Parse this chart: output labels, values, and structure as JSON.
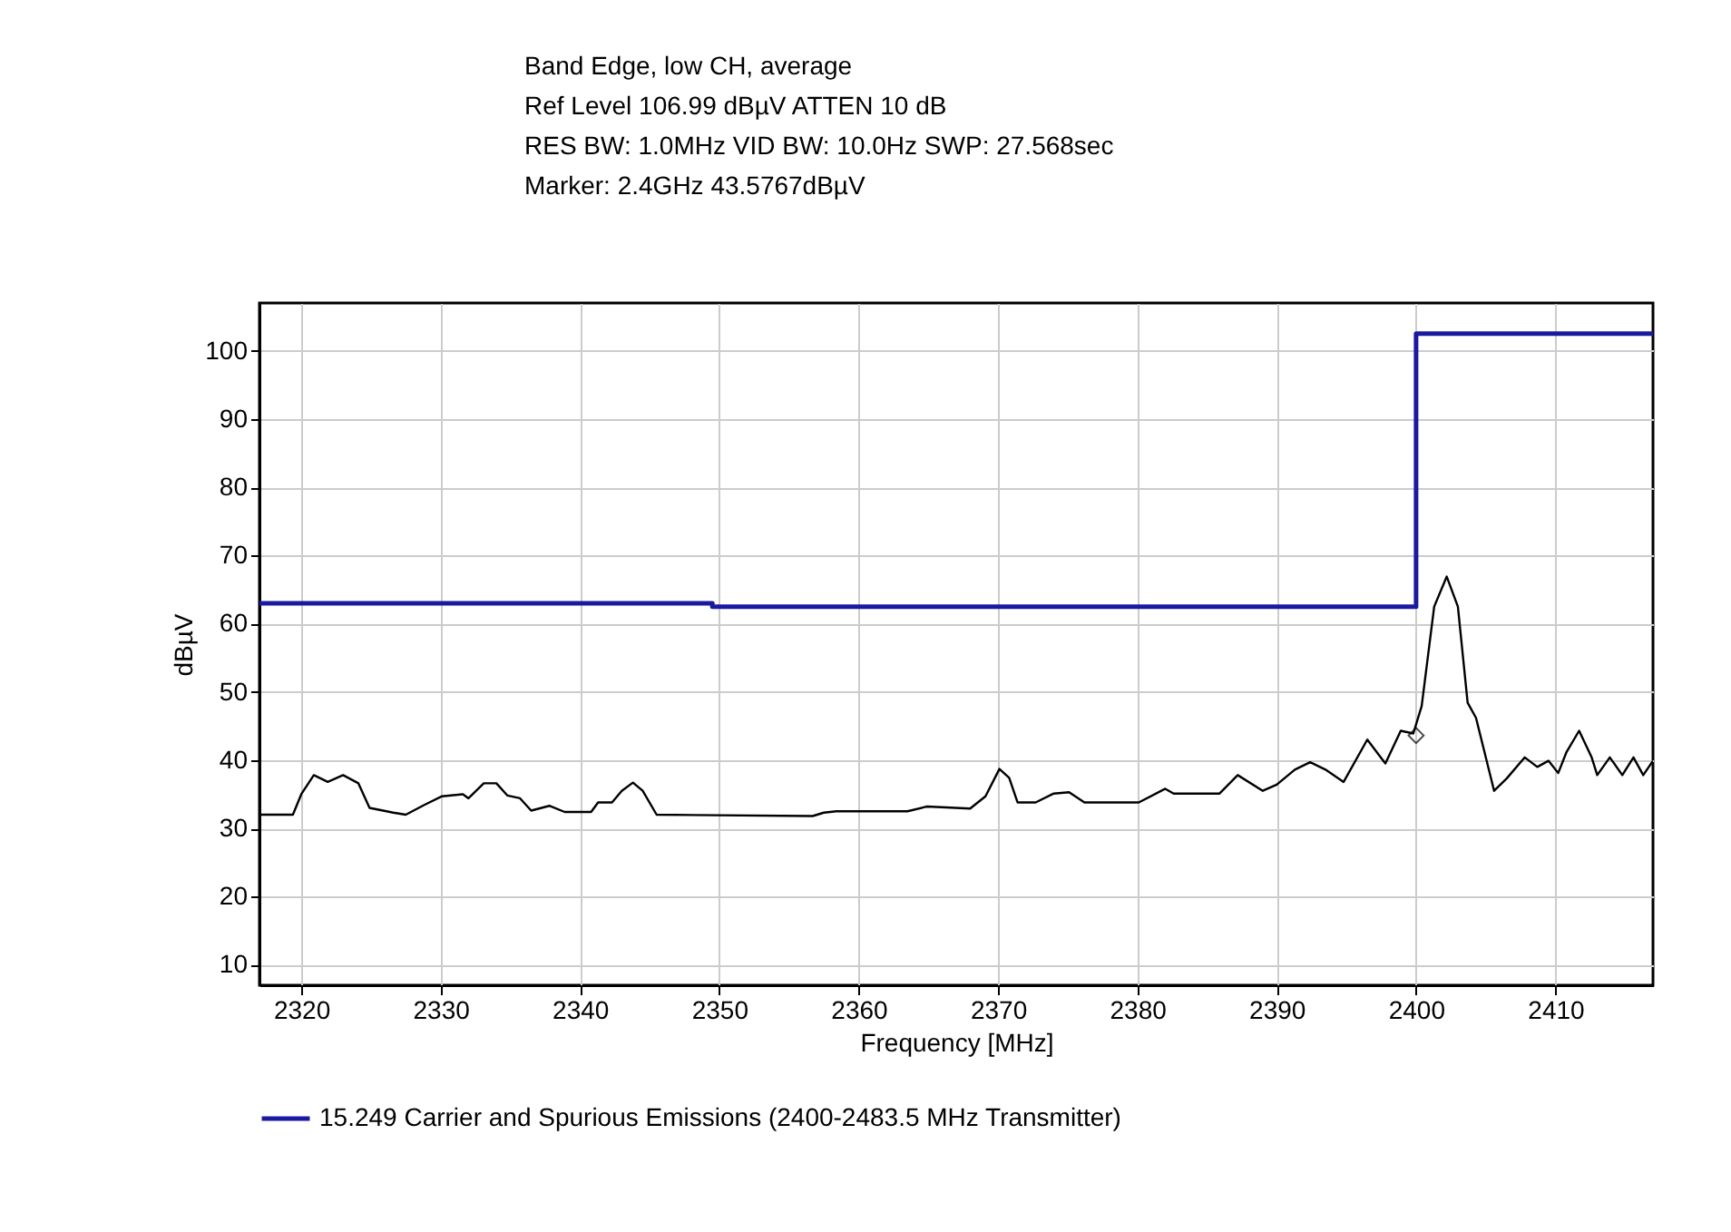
{
  "chart_data": {
    "type": "line",
    "xlabel": "Frequency [MHz]",
    "ylabel": "dBµV",
    "annotations": [
      "Band Edge, low CH, average",
      "Ref Level 106.99 dBµV    ATTEN 10 dB",
      "RES BW: 1.0MHz  VID BW: 10.0Hz  SWP: 27.568sec",
      "Marker: 2.4GHz  43.5767dBµV"
    ],
    "xlim": [
      2317,
      2417
    ],
    "xticks": [
      2320,
      2330,
      2340,
      2350,
      2360,
      2370,
      2380,
      2390,
      2400,
      2410
    ],
    "ylim": [
      7,
      107
    ],
    "yticks": [
      10,
      20,
      30,
      40,
      50,
      60,
      70,
      80,
      90,
      100
    ],
    "grid": true,
    "legend": "bottom",
    "series": [
      {
        "name": "15.249 Carrier and Spurious Emissions (2400-2483.5 MHz Transmitter)",
        "type": "step",
        "color": "#1a1aa0",
        "x": [
          2317,
          2349.5,
          2400,
          2417
        ],
        "values": [
          63,
          62.5,
          102.5,
          102.5
        ]
      },
      {
        "color": "#000000",
        "x": [
          2317.1,
          2319.4,
          2320,
          2320.9,
          2321.9,
          2323,
          2324.1,
          2324.9,
          2326.6,
          2327.5,
          2328.8,
          2330.1,
          2331.6,
          2332,
          2333.1,
          2334,
          2334.8,
          2335.7,
          2336.5,
          2337.8,
          2338.9,
          2340.8,
          2341.3,
          2342.3,
          2343,
          2343.8,
          2344.5,
          2345.5,
          2356.7,
          2357.5,
          2358.4,
          2363.5,
          2364.9,
          2368,
          2369.1,
          2370.1,
          2370.8,
          2371.4,
          2372.7,
          2374,
          2375.1,
          2376.2,
          2380.1,
          2382,
          2382.6,
          2385.9,
          2387.2,
          2389,
          2390,
          2391.3,
          2392.4,
          2393.5,
          2394.8,
          2396.5,
          2397.8,
          2398.9,
          2399.8,
          2400.4,
          2401.3,
          2402.2,
          2403,
          2403.7,
          2404.3,
          2405.6,
          2406.5,
          2407.8,
          2408.7,
          2409.5,
          2410.2,
          2410.8,
          2411.7,
          2412.6,
          2413,
          2413.9,
          2414.8,
          2415.6,
          2416.3,
          2417
        ],
        "values": [
          32,
          32,
          35,
          37.8,
          36.8,
          37.8,
          36.6,
          33,
          32.3,
          32,
          33.4,
          34.7,
          35,
          34.4,
          36.6,
          36.6,
          34.8,
          34.4,
          32.6,
          33.3,
          32.4,
          32.4,
          33.8,
          33.8,
          35.5,
          36.7,
          35.5,
          32,
          31.8,
          32.3,
          32.5,
          32.5,
          33.2,
          32.9,
          34.7,
          38.7,
          37.4,
          33.8,
          33.8,
          35.1,
          35.3,
          33.8,
          33.8,
          35.8,
          35.1,
          35.1,
          37.8,
          35.5,
          36.4,
          38.6,
          39.7,
          38.6,
          36.8,
          43,
          39.5,
          44.3,
          43.9,
          47.9,
          62.5,
          66.9,
          62.5,
          48.4,
          46.2,
          35.5,
          37.3,
          40.4,
          39,
          39.9,
          38.1,
          41.2,
          44.3,
          40.4,
          37.8,
          40.4,
          37.8,
          40.4,
          37.8,
          39.9
        ]
      },
      {
        "type": "scatter",
        "marker": "diamond",
        "color": "#000000",
        "x": [
          2400
        ],
        "values": [
          43.6
        ]
      }
    ]
  }
}
